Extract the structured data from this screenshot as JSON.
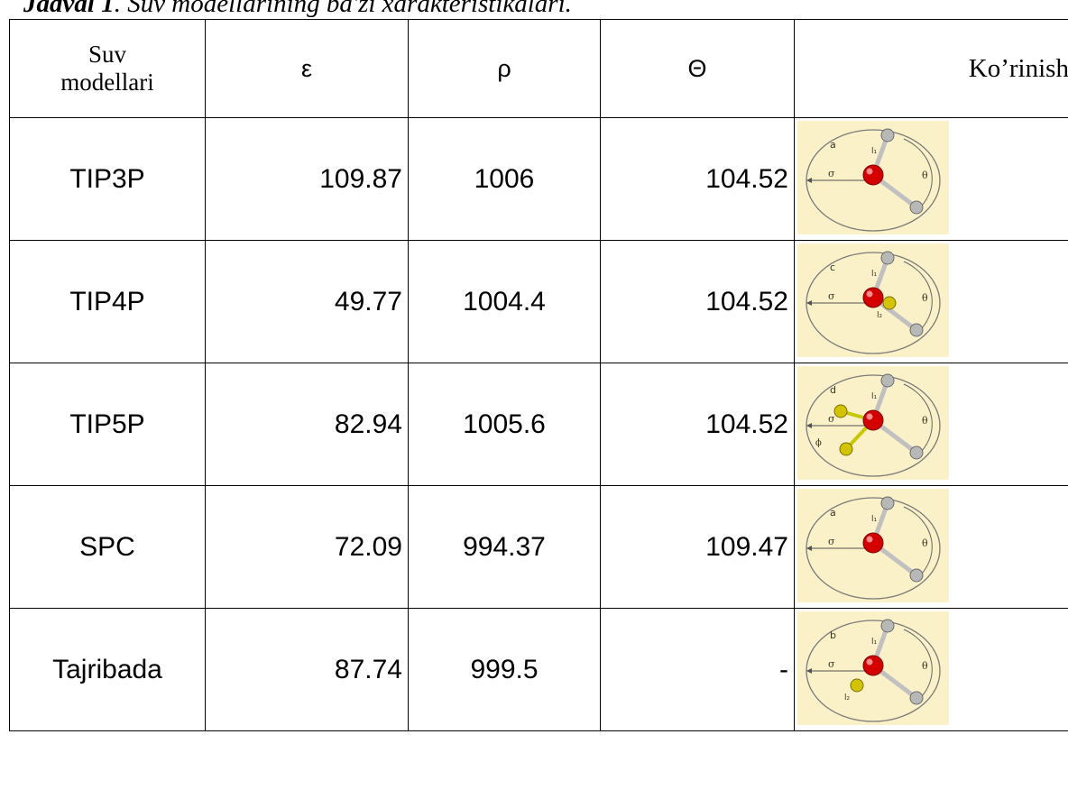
{
  "caption": {
    "lead": "Jadval 1",
    "rest": ". Suv modellarining ba'zi xarakteristikalari."
  },
  "table": {
    "headers": {
      "model": "Suv modellari",
      "epsilon": "ε",
      "rho": "ρ",
      "theta": "Θ",
      "view": "Ko’rinishi"
    },
    "rows": [
      {
        "model": "TIP3P",
        "epsilon": "109.87",
        "rho": "1006",
        "theta": "104.52",
        "diagram_letter": "a",
        "diagram_type": "3-site"
      },
      {
        "model": "TIP4P",
        "epsilon": "49.77",
        "rho": "1004.4",
        "theta": "104.52",
        "diagram_letter": "c",
        "diagram_type": "4-site"
      },
      {
        "model": "TIP5P",
        "epsilon": "82.94",
        "rho": "1005.6",
        "theta": "104.52",
        "diagram_letter": "d",
        "diagram_type": "5-site"
      },
      {
        "model": "SPC",
        "epsilon": "72.09",
        "rho": "994.37",
        "theta": "109.47",
        "diagram_letter": "a",
        "diagram_type": "3-site"
      },
      {
        "model": "Tajribada",
        "epsilon": "87.74",
        "rho": "999.5",
        "theta": "-",
        "diagram_letter": "b",
        "diagram_type": "4-site-b"
      }
    ]
  },
  "colors": {
    "diagram_bg": "#fbf1c8",
    "oxygen": "#d40000",
    "hydrogen": "#b8b8b8",
    "charge_site": "#d4c400"
  }
}
